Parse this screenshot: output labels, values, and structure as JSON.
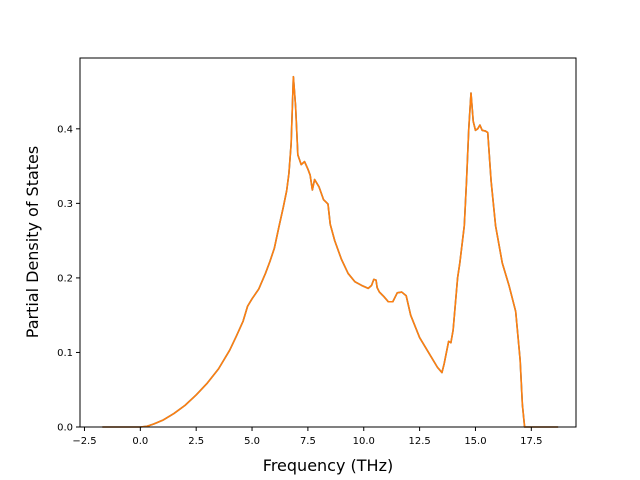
{
  "chart_data": {
    "type": "line",
    "xlabel": "Frequency (THz)",
    "ylabel": "Partial Density of States",
    "xlim": [
      -2.7,
      19.5
    ],
    "ylim": [
      0.0,
      0.495
    ],
    "xticks": [
      -2.5,
      0.0,
      2.5,
      5.0,
      7.5,
      10.0,
      12.5,
      15.0,
      17.5
    ],
    "xtick_labels": [
      "−2.5",
      "0.0",
      "2.5",
      "5.0",
      "7.5",
      "10.0",
      "12.5",
      "15.0",
      "17.5"
    ],
    "yticks": [
      0.0,
      0.1,
      0.2,
      0.3,
      0.4
    ],
    "ytick_labels": [
      "0.0",
      "0.1",
      "0.2",
      "0.3",
      "0.4"
    ],
    "grid": false,
    "series": [
      {
        "color": "#1f77b4",
        "x": [
          -1.7,
          0.0,
          0.3,
          0.6,
          1.0,
          1.5,
          2.0,
          2.5,
          3.0,
          3.5,
          4.0,
          4.3,
          4.6,
          4.8,
          5.0,
          5.3,
          5.6,
          5.8,
          6.0,
          6.2,
          6.4,
          6.55,
          6.65,
          6.75,
          6.85,
          6.95,
          7.05,
          7.2,
          7.35,
          7.5,
          7.6,
          7.7,
          7.8,
          8.0,
          8.2,
          8.3,
          8.4,
          8.5,
          8.7,
          9.0,
          9.3,
          9.6,
          9.9,
          10.2,
          10.35,
          10.45,
          10.55,
          10.6,
          10.7,
          10.9,
          11.1,
          11.3,
          11.5,
          11.7,
          11.9,
          12.1,
          12.5,
          13.0,
          13.3,
          13.5,
          13.6,
          13.7,
          13.8,
          13.9,
          14.0,
          14.2,
          14.3,
          14.5,
          14.6,
          14.7,
          14.8,
          14.9,
          15.0,
          15.1,
          15.2,
          15.3,
          15.45,
          15.55,
          15.7,
          15.9,
          16.2,
          16.5,
          16.8,
          17.0,
          17.1,
          17.2,
          18.7
        ],
        "y": [
          0.0,
          0.0,
          0.001,
          0.004,
          0.009,
          0.018,
          0.029,
          0.043,
          0.059,
          0.078,
          0.103,
          0.122,
          0.142,
          0.162,
          0.172,
          0.185,
          0.206,
          0.222,
          0.24,
          0.268,
          0.295,
          0.317,
          0.34,
          0.38,
          0.47,
          0.43,
          0.365,
          0.352,
          0.356,
          0.346,
          0.338,
          0.318,
          0.332,
          0.322,
          0.305,
          0.302,
          0.299,
          0.272,
          0.25,
          0.225,
          0.206,
          0.195,
          0.19,
          0.186,
          0.19,
          0.198,
          0.197,
          0.187,
          0.181,
          0.175,
          0.168,
          0.168,
          0.18,
          0.181,
          0.176,
          0.15,
          0.12,
          0.095,
          0.08,
          0.073,
          0.085,
          0.1,
          0.115,
          0.113,
          0.13,
          0.2,
          0.22,
          0.27,
          0.33,
          0.4,
          0.448,
          0.41,
          0.398,
          0.4,
          0.405,
          0.398,
          0.397,
          0.395,
          0.33,
          0.27,
          0.22,
          0.19,
          0.155,
          0.09,
          0.03,
          0.0,
          0.0
        ]
      },
      {
        "color": "#ff7f0e",
        "x": [
          -1.7,
          0.0,
          0.3,
          0.6,
          1.0,
          1.5,
          2.0,
          2.5,
          3.0,
          3.5,
          4.0,
          4.3,
          4.6,
          4.8,
          5.0,
          5.3,
          5.6,
          5.8,
          6.0,
          6.2,
          6.4,
          6.55,
          6.65,
          6.75,
          6.85,
          6.95,
          7.05,
          7.2,
          7.35,
          7.5,
          7.6,
          7.7,
          7.8,
          8.0,
          8.2,
          8.3,
          8.4,
          8.5,
          8.7,
          9.0,
          9.3,
          9.6,
          9.9,
          10.2,
          10.35,
          10.45,
          10.55,
          10.6,
          10.7,
          10.9,
          11.1,
          11.3,
          11.5,
          11.7,
          11.9,
          12.1,
          12.5,
          13.0,
          13.3,
          13.5,
          13.6,
          13.7,
          13.8,
          13.9,
          14.0,
          14.2,
          14.3,
          14.5,
          14.6,
          14.7,
          14.8,
          14.9,
          15.0,
          15.1,
          15.2,
          15.3,
          15.45,
          15.55,
          15.7,
          15.9,
          16.2,
          16.5,
          16.8,
          17.0,
          17.1,
          17.2,
          18.7
        ],
        "y": [
          0.0,
          0.0,
          0.001,
          0.004,
          0.009,
          0.018,
          0.029,
          0.043,
          0.059,
          0.078,
          0.103,
          0.122,
          0.142,
          0.162,
          0.172,
          0.185,
          0.206,
          0.222,
          0.24,
          0.268,
          0.295,
          0.317,
          0.34,
          0.38,
          0.47,
          0.43,
          0.365,
          0.352,
          0.356,
          0.346,
          0.338,
          0.318,
          0.332,
          0.322,
          0.305,
          0.302,
          0.299,
          0.272,
          0.25,
          0.225,
          0.206,
          0.195,
          0.19,
          0.186,
          0.19,
          0.198,
          0.197,
          0.187,
          0.181,
          0.175,
          0.168,
          0.168,
          0.18,
          0.181,
          0.176,
          0.15,
          0.12,
          0.095,
          0.08,
          0.073,
          0.085,
          0.1,
          0.115,
          0.113,
          0.13,
          0.2,
          0.22,
          0.27,
          0.33,
          0.4,
          0.448,
          0.41,
          0.398,
          0.4,
          0.405,
          0.398,
          0.397,
          0.395,
          0.33,
          0.27,
          0.22,
          0.19,
          0.155,
          0.09,
          0.03,
          0.0,
          0.0
        ]
      }
    ]
  }
}
